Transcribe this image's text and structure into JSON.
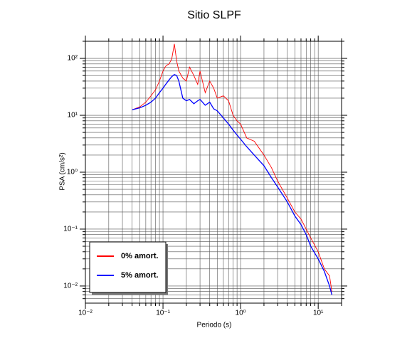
{
  "chart_data": {
    "type": "line",
    "title": "Sitio SLPF",
    "xlabel": "Periodo (s)",
    "ylabel": "PSA (cm/s²)",
    "xscale": "log",
    "yscale": "log",
    "grid": true,
    "legend": "lower left",
    "x": [
      0.04,
      0.05,
      0.06,
      0.07,
      0.08,
      0.09,
      0.1,
      0.11,
      0.12,
      0.13,
      0.14,
      0.15,
      0.16,
      0.18,
      0.2,
      0.22,
      0.25,
      0.28,
      0.3,
      0.35,
      0.4,
      0.45,
      0.5,
      0.6,
      0.7,
      0.8,
      0.9,
      1,
      1.2,
      1.5,
      2,
      2.5,
      3,
      4,
      5,
      6,
      7,
      8,
      10,
      12,
      14,
      15
    ],
    "series": [
      {
        "name": "0% amort.",
        "color": "#ff0000",
        "values": [
          12.5,
          14,
          17,
          22,
          28,
          40,
          60,
          75,
          80,
          100,
          180,
          90,
          60,
          45,
          40,
          70,
          50,
          35,
          60,
          25,
          40,
          30,
          20,
          22,
          18,
          10,
          8,
          7,
          4,
          3.5,
          2,
          1.2,
          0.7,
          0.35,
          0.2,
          0.15,
          0.1,
          0.07,
          0.04,
          0.02,
          0.015,
          0.008
        ]
      },
      {
        "name": "5% amort.",
        "color": "#0000ff",
        "values": [
          12.5,
          13.5,
          15,
          17,
          20,
          25,
          30,
          36,
          42,
          48,
          52,
          50,
          40,
          20,
          18,
          19,
          16,
          18,
          19,
          15,
          17,
          13,
          12,
          9,
          7,
          5.5,
          4.5,
          3.8,
          2.8,
          2,
          1.3,
          0.8,
          0.55,
          0.3,
          0.17,
          0.12,
          0.08,
          0.05,
          0.03,
          0.018,
          0.01,
          0.007
        ]
      }
    ],
    "xlim": [
      0.01,
      20
    ],
    "ylim": [
      0.005,
      200
    ],
    "xticks": [
      {
        "value": 0.01,
        "label": "10⁻²"
      },
      {
        "value": 0.1,
        "label": "10⁻¹"
      },
      {
        "value": 1,
        "label": "10⁰"
      },
      {
        "value": 10,
        "label": "10¹"
      }
    ],
    "yticks": [
      {
        "value": 0.01,
        "label": "10⁻²"
      },
      {
        "value": 0.1,
        "label": "10⁻¹"
      },
      {
        "value": 1,
        "label": "10⁰"
      },
      {
        "value": 10,
        "label": "10¹"
      },
      {
        "value": 100,
        "label": "10²"
      }
    ],
    "x_minor_ticks": [
      0.02,
      0.03,
      0.04,
      0.05,
      0.06,
      0.07,
      0.08,
      0.09,
      0.2,
      0.3,
      0.4,
      0.5,
      0.6,
      0.7,
      0.8,
      0.9,
      2,
      3,
      4,
      5,
      6,
      7,
      8,
      9,
      20
    ],
    "y_minor_ticks": [
      0.006,
      0.007,
      0.008,
      0.009,
      0.02,
      0.03,
      0.04,
      0.05,
      0.06,
      0.07,
      0.08,
      0.09,
      0.2,
      0.3,
      0.4,
      0.5,
      0.6,
      0.7,
      0.8,
      0.9,
      2,
      3,
      4,
      5,
      6,
      7,
      8,
      9,
      20,
      30,
      40,
      50,
      60,
      70,
      80,
      90,
      200
    ]
  }
}
